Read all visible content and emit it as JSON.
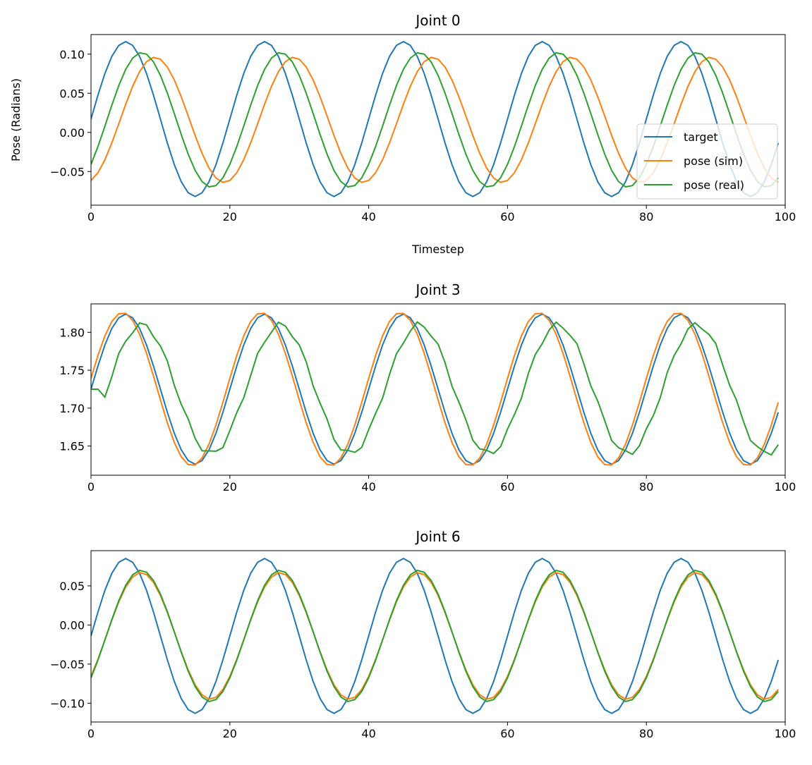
{
  "series_styles": [
    {
      "key": "target",
      "color": "#1f77b4"
    },
    {
      "key": "pose_sim",
      "color": "#ff7f0e"
    },
    {
      "key": "pose_real",
      "color": "#2ca02c"
    }
  ],
  "chart_data": [
    {
      "type": "line",
      "title": "Joint 0",
      "xlabel": "Timestep",
      "ylabel": "Pose (Radians)",
      "xlim": [
        0,
        100
      ],
      "ylim": [
        -0.093,
        0.125
      ],
      "xticks": [
        0,
        20,
        40,
        60,
        80,
        100
      ],
      "xtick_labels": [
        "0",
        "20",
        "40",
        "60",
        "80",
        "100"
      ],
      "yticks": [
        -0.05,
        0.0,
        0.05,
        0.1
      ],
      "ytick_labels": [
        "−0.05",
        "0.00",
        "0.05",
        "0.10"
      ],
      "legend": {
        "placement": "lower-right",
        "entries": [
          "target",
          "pose (sim)",
          "pose (real)"
        ]
      },
      "series": [
        {
          "name": "target",
          "model": {
            "offset": 0.017,
            "amp": 0.099,
            "period": 20,
            "phase": 0,
            "lag": 0
          }
        },
        {
          "name": "pose (sim)",
          "model": {
            "offset": 0.016,
            "amp": 0.08,
            "period": 20,
            "phase": 0,
            "lag": 4.2
          }
        },
        {
          "name": "pose (real)",
          "model": {
            "offset": 0.016,
            "amp": 0.086,
            "period": 20,
            "phase": 0,
            "lag": 2.3
          }
        }
      ]
    },
    {
      "type": "line",
      "title": "Joint 3",
      "xlabel": "",
      "ylabel": "",
      "xlim": [
        0,
        100
      ],
      "ylim": [
        1.6115,
        1.8375
      ],
      "xticks": [
        0,
        20,
        40,
        60,
        80,
        100
      ],
      "xtick_labels": [
        "0",
        "20",
        "40",
        "60",
        "80",
        "100"
      ],
      "yticks": [
        1.65,
        1.7,
        1.75,
        1.8
      ],
      "ytick_labels": [
        "1.65",
        "1.70",
        "1.75",
        "1.80"
      ],
      "legend": null,
      "series": [
        {
          "name": "target",
          "model": {
            "offset": 1.725,
            "amp": 0.099,
            "period": 20,
            "phase": 0,
            "lag": 0
          }
        },
        {
          "name": "pose (sim)",
          "model": {
            "offset": 1.725,
            "amp": 0.101,
            "period": 20,
            "phase": 0,
            "lag": -0.45
          }
        },
        {
          "name": "pose (real)",
          "model": {
            "offset": 1.725,
            "amp": 0.085,
            "period": 20,
            "phase": 0,
            "lag": 2.3
          }
        }
      ]
    },
    {
      "type": "line",
      "title": "Joint 6",
      "xlabel": "",
      "ylabel": "",
      "xlim": [
        0,
        100
      ],
      "ylim": [
        -0.124,
        0.095
      ],
      "xticks": [
        0,
        20,
        40,
        60,
        80,
        100
      ],
      "xtick_labels": [
        "0",
        "20",
        "40",
        "60",
        "80",
        "100"
      ],
      "yticks": [
        -0.1,
        -0.05,
        0.0,
        0.05
      ],
      "ytick_labels": [
        "−0.10",
        "−0.05",
        "0.00",
        "0.05"
      ],
      "legend": null,
      "series": [
        {
          "name": "target",
          "model": {
            "offset": -0.014,
            "amp": 0.099,
            "period": 20,
            "phase": 0,
            "lag": 0
          }
        },
        {
          "name": "pose (sim)",
          "model": {
            "offset": -0.014,
            "amp": 0.081,
            "period": 20,
            "phase": 0,
            "lag": 2.2
          }
        },
        {
          "name": "pose (real)",
          "model": {
            "offset": -0.014,
            "amp": 0.084,
            "period": 20,
            "phase": 0,
            "lag": 2.2
          }
        }
      ]
    }
  ]
}
